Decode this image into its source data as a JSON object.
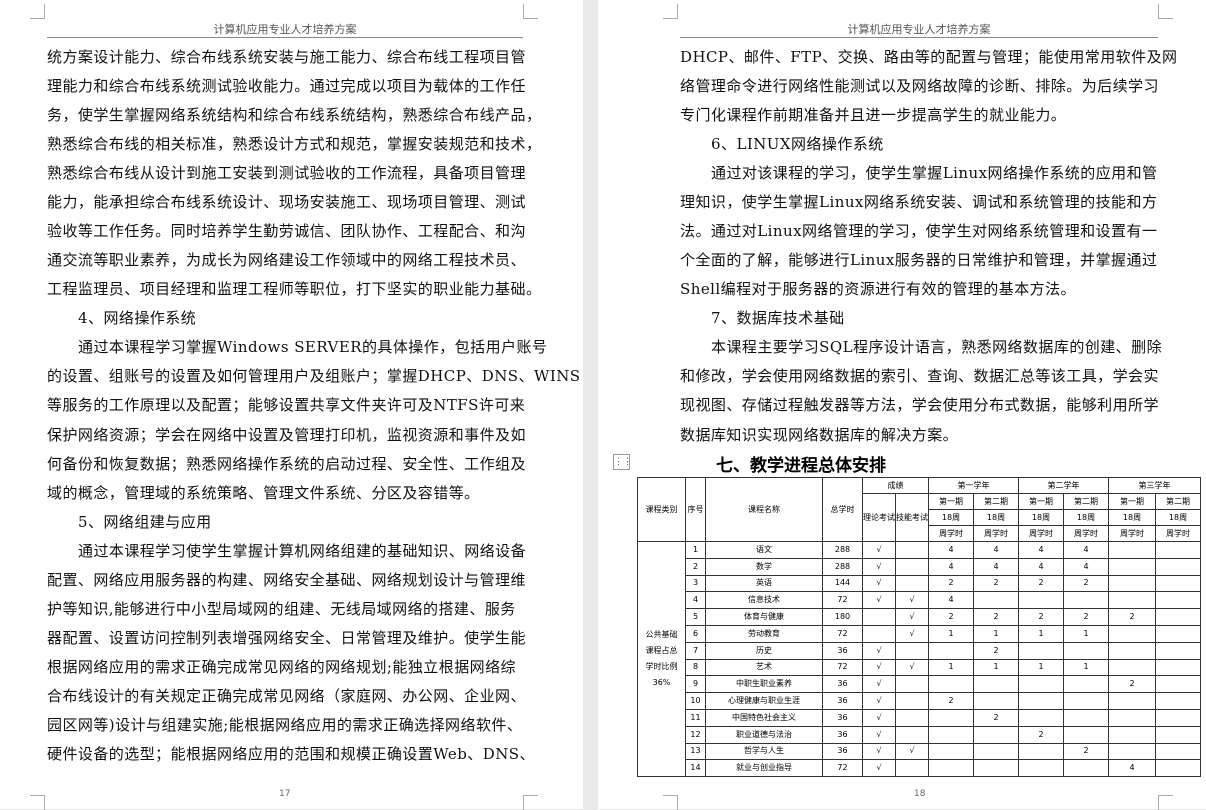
{
  "pages": [
    {
      "header": "计算机应用专业人才培养方案",
      "page_number": "17",
      "lines": [
        "统方案设计能力、综合布线系统安装与施工能力、综合布线工程项目管",
        "理能力和综合布线系统测试验收能力。通过完成以项目为载体的工作任",
        "务，使学生掌握网络系统结构和综合布线系统结构，熟悉综合布线产品，",
        "熟悉综合布线的相关标准，熟悉设计方式和规范，掌握安装规范和技术，",
        "熟悉综合布线从设计到施工安装到测试验收的工作流程，具备项目管理",
        "能力，能承担综合布线系统设计、现场安装施工、现场项目管理、测试",
        "验收等工作任务。同时培养学生勤劳诚信、团队协作、工程配合、和沟",
        "通交流等职业素养，为成长为网络建设工作领域中的网络工程技术员、",
        "工程监理员、项目经理和监理工程师等职位，打下坚实的职业能力基础。",
        "4、网络操作系统",
        "通过本课程学习掌握Windows SERVER的具体操作，包括用户账号",
        "的设置、组账号的设置及如何管理用户及组账户；掌握DHCP、DNS、WINS",
        "等服务的工作原理以及配置；能够设置共享文件夹许可及NTFS许可来",
        "保护网络资源；学会在网络中设置及管理打印机，监视资源和事件及如",
        "何备份和恢复数据；熟悉网络操作系统的启动过程、安全性、工作组及",
        "域的概念，管理域的系统策略、管理文件系统、分区及容错等。",
        "5、网络组建与应用",
        "通过本课程学习使学生掌握计算机网络组建的基础知识、网络设备",
        "配置、网络应用服务器的构建、网络安全基础、网络规划设计与管理维",
        "护等知识,能够进行中小型局域网的组建、无线局域网络的搭建、服务",
        "器配置、设置访问控制列表增强网络安全、日常管理及维护。使学生能",
        "根据网络应用的需求正确完成常见网络的网络规划;能独立根据网络综",
        "合布线设计的有关规定正确完成常见网络（家庭网、办公网、企业网、",
        "园区网等)设计与组建实施;能根据网络应用的需求正确选择网络软件、",
        "硬件设备的选型；能根据网络应用的范围和规模正确设置Web、DNS、"
      ]
    },
    {
      "header": "计算机应用专业人才培养方案",
      "page_number": "18",
      "lines": [
        "DHCP、邮件、FTP、交换、路由等的配置与管理；能使用常用软件及网",
        "络管理命令进行网络性能测试以及网络故障的诊断、排除。为后续学习",
        "专门化课程作前期准备并且进一步提高学生的就业能力。",
        "6、LINUX网络操作系统",
        "通过对该课程的学习，使学生掌握Linux网络操作系统的应用和管",
        "理知识，使学生掌握Linux网络系统安装、调试和系统管理的技能和方",
        "法。通过对Linux网络管理的学习，使学生对网络系统管理和设置有一",
        "个全面的了解，能够进行Linux服务器的日常维护和管理，并掌握通过",
        "Shell编程对于服务器的资源进行有效的管理的基本方法。",
        "7、数据库技术基础",
        "本课程主要学习SQL程序设计语言，熟悉网络数据库的创建、删除",
        "和修改，学会使用网络数据的索引、查询、数据汇总等该工具，学会实",
        "现视图、存储过程触发器等方法，学会使用分布式数据，能够利用所学",
        "数据库知识实现网络数据库的解决方案。"
      ],
      "section_heading": "七、教学进程总体安排",
      "table": {
        "header_row_1": [
          "课程类别",
          "序号",
          "课程名称",
          "总学时",
          "成绩",
          "第一学年",
          "第二学年",
          "第三学年"
        ],
        "header_row_2": [
          "理论考试",
          "技能考试",
          "第一期",
          "第二期",
          "第一期",
          "第二期",
          "第一期",
          "第二期"
        ],
        "header_row_3": [
          "18周",
          "18周",
          "18周",
          "18周",
          "18周",
          "18周"
        ],
        "header_row_4": [
          "周学时",
          "周学时",
          "周学时",
          "周学时",
          "周学时",
          "周学时"
        ],
        "category": "公共基础课程占总学时比例36%",
        "rows": [
          [
            "1",
            "语文",
            "288",
            "√",
            null,
            "4",
            "4",
            "4",
            "4",
            null,
            null
          ],
          [
            "2",
            "数学",
            "288",
            "√",
            null,
            "4",
            "4",
            "4",
            "4",
            null,
            null
          ],
          [
            "3",
            "英语",
            "144",
            "√",
            null,
            "2",
            "2",
            "2",
            "2",
            null,
            null
          ],
          [
            "4",
            "信息技术",
            "72",
            "√",
            "√",
            "4",
            null,
            null,
            null,
            null,
            null
          ],
          [
            "5",
            "体育与健康",
            "180",
            null,
            "√",
            "2",
            "2",
            "2",
            "2",
            "2",
            null
          ],
          [
            "6",
            "劳动教育",
            "72",
            null,
            "√",
            "1",
            "1",
            "1",
            "1",
            null,
            null
          ],
          [
            "7",
            "历史",
            "36",
            "√",
            null,
            null,
            "2",
            null,
            null,
            null,
            null
          ],
          [
            "8",
            "艺术",
            "72",
            "√",
            "√",
            "1",
            "1",
            "1",
            "1",
            null,
            null
          ],
          [
            "9",
            "中职生职业素养",
            "36",
            "√",
            null,
            null,
            null,
            null,
            null,
            "2",
            null
          ],
          [
            "10",
            "心理健康与职业生涯",
            "36",
            "√",
            null,
            "2",
            null,
            null,
            null,
            null,
            null
          ],
          [
            "11",
            "中国特色社会主义",
            "36",
            "√",
            null,
            null,
            "2",
            null,
            null,
            null,
            null
          ],
          [
            "12",
            "职业道德与法治",
            "36",
            "√",
            null,
            null,
            null,
            "2",
            null,
            null,
            null
          ],
          [
            "13",
            "哲学与人生",
            "36",
            "√",
            "√",
            null,
            null,
            null,
            "2",
            null,
            null
          ],
          [
            "14",
            "就业与创业指导",
            "72",
            "√",
            null,
            null,
            null,
            null,
            null,
            "4",
            null
          ]
        ]
      }
    }
  ]
}
